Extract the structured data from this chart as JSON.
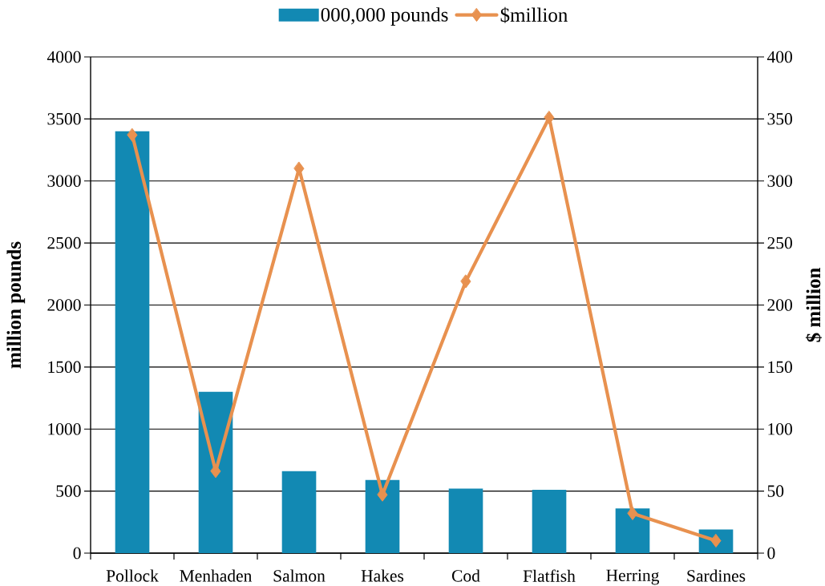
{
  "chart_data": {
    "type": "bar",
    "categories": [
      "Pollock",
      "Menhaden",
      "Salmon",
      "Hakes",
      "Cod",
      "Flatfish",
      "Herring",
      "Sardines"
    ],
    "series": [
      {
        "name": "000,000 pounds",
        "color": "#1289b3",
        "values": [
          3400,
          1300,
          660,
          590,
          520,
          510,
          360,
          190
        ]
      },
      {
        "name": "$million",
        "type": "line",
        "axis": "y2",
        "color": "#e8914f",
        "marker": "diamond",
        "values": [
          337,
          66,
          310,
          47,
          219,
          351,
          32,
          10
        ]
      }
    ],
    "ylabel": "million pounds",
    "y2label": "$ million",
    "ylim": [
      0,
      4000
    ],
    "yticks": [
      0,
      500,
      1000,
      1500,
      2000,
      2500,
      3000,
      3500,
      4000
    ],
    "y2lim": [
      0,
      400
    ],
    "y2ticks": [
      0,
      50,
      100,
      150,
      200,
      250,
      300,
      350,
      400
    ],
    "grid": "y",
    "legend": "top"
  }
}
